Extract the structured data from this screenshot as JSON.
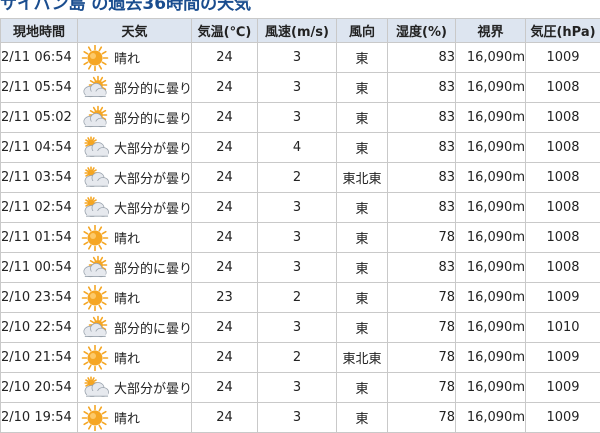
{
  "page": {
    "title": "サイパン島 の過去36時間の天気"
  },
  "table": {
    "headers": [
      "現地時間",
      "天気",
      "気温(℃)",
      "風速(m/s)",
      "風向",
      "湿度(%)",
      "視界",
      "気圧(hPa)"
    ],
    "rows": [
      {
        "time": "2/11 06:54",
        "icon": "sunny-icon",
        "weather": "晴れ",
        "temp": "24",
        "wind": "3",
        "dir": "東",
        "humidity": "83",
        "vis": "16,090m",
        "pressure": "1009"
      },
      {
        "time": "2/11 05:54",
        "icon": "partly-cloudy-icon",
        "weather": "部分的に曇り",
        "temp": "24",
        "wind": "3",
        "dir": "東",
        "humidity": "83",
        "vis": "16,090m",
        "pressure": "1008"
      },
      {
        "time": "2/11 05:02",
        "icon": "partly-cloudy-icon",
        "weather": "部分的に曇り",
        "temp": "24",
        "wind": "3",
        "dir": "東",
        "humidity": "83",
        "vis": "16,090m",
        "pressure": "1008"
      },
      {
        "time": "2/11 04:54",
        "icon": "mostly-cloudy-icon",
        "weather": "大部分が曇り",
        "temp": "24",
        "wind": "4",
        "dir": "東",
        "humidity": "83",
        "vis": "16,090m",
        "pressure": "1008"
      },
      {
        "time": "2/11 03:54",
        "icon": "mostly-cloudy-icon",
        "weather": "大部分が曇り",
        "temp": "24",
        "wind": "2",
        "dir": "東北東",
        "humidity": "83",
        "vis": "16,090m",
        "pressure": "1008"
      },
      {
        "time": "2/11 02:54",
        "icon": "mostly-cloudy-icon",
        "weather": "大部分が曇り",
        "temp": "24",
        "wind": "3",
        "dir": "東",
        "humidity": "83",
        "vis": "16,090m",
        "pressure": "1008"
      },
      {
        "time": "2/11 01:54",
        "icon": "sunny-icon",
        "weather": "晴れ",
        "temp": "24",
        "wind": "3",
        "dir": "東",
        "humidity": "78",
        "vis": "16,090m",
        "pressure": "1008"
      },
      {
        "time": "2/11 00:54",
        "icon": "partly-cloudy-icon",
        "weather": "部分的に曇り",
        "temp": "24",
        "wind": "3",
        "dir": "東",
        "humidity": "83",
        "vis": "16,090m",
        "pressure": "1008"
      },
      {
        "time": "2/10 23:54",
        "icon": "sunny-icon",
        "weather": "晴れ",
        "temp": "23",
        "wind": "2",
        "dir": "東",
        "humidity": "78",
        "vis": "16,090m",
        "pressure": "1009"
      },
      {
        "time": "2/10 22:54",
        "icon": "partly-cloudy-icon",
        "weather": "部分的に曇り",
        "temp": "24",
        "wind": "3",
        "dir": "東",
        "humidity": "78",
        "vis": "16,090m",
        "pressure": "1010"
      },
      {
        "time": "2/10 21:54",
        "icon": "sunny-icon",
        "weather": "晴れ",
        "temp": "24",
        "wind": "2",
        "dir": "東北東",
        "humidity": "78",
        "vis": "16,090m",
        "pressure": "1009"
      },
      {
        "time": "2/10 20:54",
        "icon": "mostly-cloudy-icon",
        "weather": "大部分が曇り",
        "temp": "24",
        "wind": "3",
        "dir": "東",
        "humidity": "78",
        "vis": "16,090m",
        "pressure": "1009"
      },
      {
        "time": "2/10 19:54",
        "icon": "sunny-icon",
        "weather": "晴れ",
        "temp": "24",
        "wind": "3",
        "dir": "東",
        "humidity": "78",
        "vis": "16,090m",
        "pressure": "1009"
      }
    ]
  },
  "colors": {
    "title": "#1a4d8f",
    "header_bg": "#dde5f0",
    "border": "#c9c9c9",
    "sun": "#f5a623",
    "cloud": "#e6e9ee"
  }
}
